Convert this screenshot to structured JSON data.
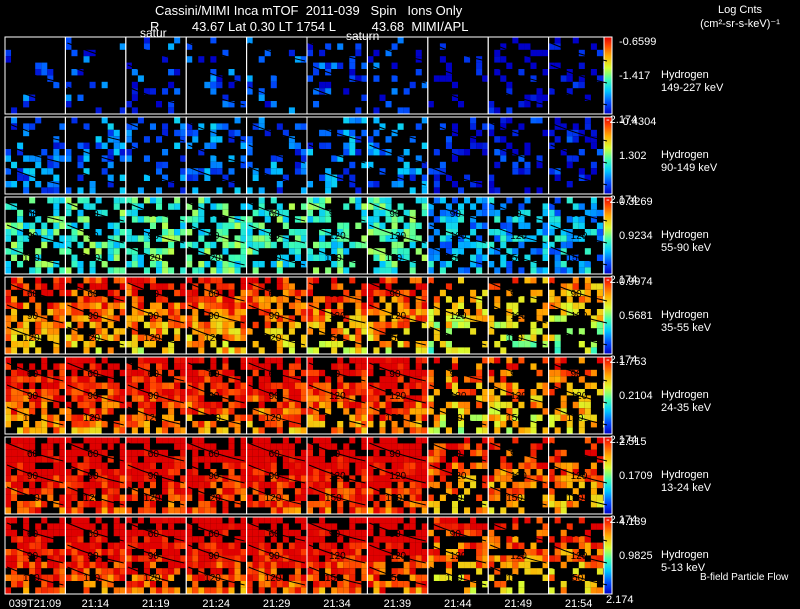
{
  "header": {
    "line1": "Cassini/MIMI Inca mTOF  2011-039   Spin   Ions Only",
    "line2": "R         43.67 Lat 0.30 LT 1754 L          43.68  MIMI/APL"
  },
  "colorbar_title": "Log Cnts",
  "colorbar_units": "(cm²-sr-s-keV)⁻¹",
  "footer_note": "B-field Particle Flow",
  "overlay_labels": [
    "satur",
    "saturn"
  ],
  "chart_data": {
    "type": "heatmap",
    "title": "Cassini/MIMI Inca mTOF 2011-039 Spin Ions Only",
    "time_labels": [
      "039T21:09",
      "21:14",
      "21:19",
      "21:24",
      "21:29",
      "21:34",
      "21:39",
      "21:44",
      "21:49",
      "21:54"
    ],
    "contour_labels": [
      "60",
      "90",
      "120",
      "150"
    ],
    "rows": [
      {
        "species": "Hydrogen",
        "energy": "149-227 keV",
        "cb_max": "-0.6599",
        "cb_mid": "-1.417",
        "cb_min": "-2.174",
        "density": 0.22,
        "level": 0.12
      },
      {
        "species": "Hydrogen",
        "energy": "90-149 keV",
        "cb_max": "-0.4304",
        "cb_mid": "1.302",
        "cb_min": "-2.174",
        "density": 0.38,
        "level": 0.18
      },
      {
        "species": "Hydrogen",
        "energy": "55-90 keV",
        "cb_max": "0.3269",
        "cb_mid": "0.9234",
        "cb_min": "-2.174",
        "density": 0.62,
        "level": 0.42
      },
      {
        "species": "Hydrogen",
        "energy": "35-55 keV",
        "cb_max": "0.9974",
        "cb_mid": "0.5681",
        "cb_min": "-2.174",
        "density": 0.78,
        "level": 0.62
      },
      {
        "species": "Hydrogen",
        "energy": "24-35 keV",
        "cb_max": "1.753",
        "cb_mid": "0.2104",
        "cb_min": "-2.174",
        "density": 0.86,
        "level": 0.72
      },
      {
        "species": "Hydrogen",
        "energy": "13-24 keV",
        "cb_max": "2.515",
        "cb_mid": "0.1709",
        "cb_min": "-2.174",
        "density": 0.9,
        "level": 0.8
      },
      {
        "species": "Hydrogen",
        "energy": "5-13 keV",
        "cb_max": "4.139",
        "cb_mid": "0.9825",
        "cb_min": "2.174",
        "density": 0.9,
        "level": 0.78
      }
    ]
  }
}
